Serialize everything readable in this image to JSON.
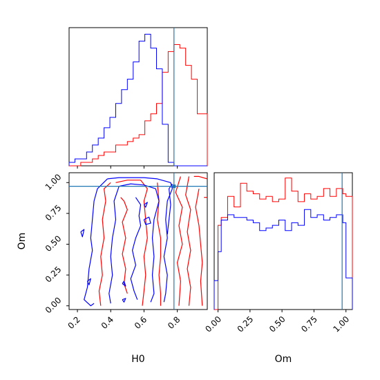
{
  "colors": {
    "series_a": "#ff0000",
    "series_b": "#0000ff",
    "truth": "#1f77b4"
  },
  "chart_data": [
    {
      "panel": "H0 marginal",
      "type": "histogram",
      "x_range": [
        0.15,
        0.98
      ],
      "bin_edges": [
        0.15,
        0.185,
        0.22,
        0.255,
        0.29,
        0.325,
        0.36,
        0.395,
        0.43,
        0.465,
        0.5,
        0.535,
        0.57,
        0.605,
        0.64,
        0.675,
        0.71,
        0.745,
        0.78,
        0.815,
        0.85,
        0.885,
        0.92,
        0.955,
        0.98
      ],
      "series": [
        {
          "color": "red",
          "counts": [
            0,
            0,
            1,
            1,
            2,
            3,
            4,
            4,
            6,
            6,
            7,
            8,
            9,
            13,
            15,
            18,
            27,
            33,
            35,
            34,
            29,
            25,
            15,
            15
          ]
        },
        {
          "color": "blue",
          "counts": [
            1,
            2,
            2,
            4,
            6,
            8,
            11,
            14,
            18,
            22,
            25,
            30,
            36,
            38,
            34,
            28,
            12,
            1,
            0,
            0,
            0,
            0,
            0,
            0
          ]
        }
      ],
      "truth_x": 0.78,
      "x_ticks": [
        "0.2",
        "0.4",
        "0.6",
        "0.8"
      ]
    },
    {
      "panel": "H0 vs Om joint",
      "type": "contour",
      "x_range": [
        0.15,
        0.98
      ],
      "y_range": [
        -0.03,
        1.08
      ],
      "xlabel": "H0",
      "ylabel": "Om",
      "x_ticks": [
        "0.2",
        "0.4",
        "0.6",
        "0.8"
      ],
      "y_ticks": [
        "0.00",
        "0.25",
        "0.50",
        "0.75",
        "1.00"
      ],
      "truth": {
        "x": 0.78,
        "y": 0.97
      },
      "series": [
        {
          "color": "red",
          "contours": [
            [
              [
                0.43,
                1.0
              ],
              [
                0.5,
                1.02
              ],
              [
                0.58,
                1.02
              ],
              [
                0.62,
                0.95
              ],
              [
                0.6,
                0.85
              ],
              [
                0.61,
                0.7
              ],
              [
                0.62,
                0.55
              ],
              [
                0.6,
                0.4
              ],
              [
                0.61,
                0.25
              ],
              [
                0.6,
                0.12
              ],
              [
                0.59,
                0.0
              ]
            ],
            [
              [
                0.34,
                0.0
              ],
              [
                0.33,
                0.12
              ],
              [
                0.35,
                0.25
              ],
              [
                0.34,
                0.4
              ],
              [
                0.36,
                0.55
              ],
              [
                0.35,
                0.7
              ],
              [
                0.37,
                0.85
              ],
              [
                0.36,
                0.95
              ],
              [
                0.4,
                1.0
              ]
            ],
            [
              [
                0.46,
                0.88
              ],
              [
                0.48,
                0.85
              ],
              [
                0.5,
                0.78
              ],
              [
                0.47,
                0.68
              ],
              [
                0.49,
                0.55
              ],
              [
                0.47,
                0.42
              ],
              [
                0.49,
                0.3
              ],
              [
                0.48,
                0.18
              ],
              [
                0.5,
                0.1
              ]
            ],
            [
              [
                0.68,
                1.0
              ],
              [
                0.69,
                0.85
              ],
              [
                0.68,
                0.7
              ],
              [
                0.7,
                0.55
              ],
              [
                0.7,
                0.4
              ],
              [
                0.69,
                0.25
              ],
              [
                0.7,
                0.1
              ],
              [
                0.7,
                0.0
              ]
            ],
            [
              [
                0.82,
                1.05
              ],
              [
                0.79,
                0.92
              ],
              [
                0.83,
                0.8
              ],
              [
                0.81,
                0.65
              ],
              [
                0.83,
                0.5
              ],
              [
                0.8,
                0.35
              ],
              [
                0.82,
                0.2
              ],
              [
                0.81,
                0.0
              ]
            ],
            [
              [
                0.87,
                1.05
              ],
              [
                0.85,
                0.9
              ],
              [
                0.88,
                0.78
              ],
              [
                0.86,
                0.6
              ],
              [
                0.88,
                0.45
              ],
              [
                0.86,
                0.3
              ],
              [
                0.88,
                0.15
              ],
              [
                0.87,
                0.0
              ]
            ],
            [
              [
                0.93,
                0.95
              ],
              [
                0.91,
                0.8
              ],
              [
                0.93,
                0.65
              ],
              [
                0.94,
                0.5
              ],
              [
                0.95,
                0.35
              ],
              [
                0.94,
                0.2
              ],
              [
                0.95,
                0.0
              ]
            ],
            [
              [
                0.96,
                0.88
              ],
              [
                0.98,
                0.88
              ]
            ],
            [
              [
                0.9,
                1.05
              ],
              [
                0.93,
                1.05
              ],
              [
                0.98,
                1.03
              ]
            ]
          ]
        },
        {
          "color": "blue",
          "contours": [
            [
              [
                0.38,
                1.03
              ],
              [
                0.45,
                1.04
              ],
              [
                0.52,
                1.04
              ],
              [
                0.6,
                1.04
              ],
              [
                0.68,
                1.03
              ],
              [
                0.76,
                1.0
              ],
              [
                0.77,
                0.95
              ],
              [
                0.74,
                0.85
              ],
              [
                0.73,
                0.7
              ],
              [
                0.74,
                0.55
              ],
              [
                0.72,
                0.4
              ],
              [
                0.74,
                0.25
              ],
              [
                0.73,
                0.1
              ],
              [
                0.72,
                0.03
              ]
            ],
            [
              [
                0.38,
                1.03
              ],
              [
                0.32,
                0.95
              ],
              [
                0.3,
                0.85
              ],
              [
                0.29,
                0.7
              ],
              [
                0.28,
                0.55
              ],
              [
                0.29,
                0.45
              ],
              [
                0.27,
                0.3
              ],
              [
                0.26,
                0.15
              ],
              [
                0.24,
                0.05
              ],
              [
                0.28,
                0.0
              ],
              [
                0.3,
                0.02
              ]
            ],
            [
              [
                0.45,
                0.97
              ],
              [
                0.52,
                0.99
              ],
              [
                0.6,
                0.98
              ],
              [
                0.67,
                0.95
              ],
              [
                0.69,
                0.85
              ],
              [
                0.66,
                0.7
              ],
              [
                0.65,
                0.55
              ],
              [
                0.66,
                0.4
              ],
              [
                0.65,
                0.25
              ],
              [
                0.66,
                0.1
              ],
              [
                0.64,
                0.03
              ]
            ],
            [
              [
                0.45,
                0.97
              ],
              [
                0.42,
                0.85
              ],
              [
                0.43,
                0.7
              ],
              [
                0.41,
                0.55
              ],
              [
                0.4,
                0.4
              ],
              [
                0.41,
                0.25
              ],
              [
                0.39,
                0.1
              ],
              [
                0.4,
                0.02
              ]
            ],
            [
              [
                0.55,
                0.88
              ],
              [
                0.58,
                0.82
              ],
              [
                0.57,
                0.73
              ],
              [
                0.58,
                0.65
              ],
              [
                0.55,
                0.55
              ],
              [
                0.53,
                0.45
              ],
              [
                0.55,
                0.33
              ],
              [
                0.52,
                0.22
              ],
              [
                0.54,
                0.12
              ],
              [
                0.56,
                0.05
              ]
            ],
            [
              [
                0.6,
                0.7
              ],
              [
                0.63,
                0.72
              ],
              [
                0.64,
                0.67
              ],
              [
                0.61,
                0.66
              ],
              [
                0.6,
                0.7
              ]
            ],
            [
              [
                0.6,
                0.82
              ],
              [
                0.62,
                0.84
              ],
              [
                0.61,
                0.8
              ],
              [
                0.6,
                0.82
              ]
            ],
            [
              [
                0.22,
                0.6
              ],
              [
                0.24,
                0.62
              ],
              [
                0.23,
                0.56
              ],
              [
                0.22,
                0.6
              ]
            ],
            [
              [
                0.26,
                0.2
              ],
              [
                0.28,
                0.22
              ],
              [
                0.27,
                0.17
              ],
              [
                0.26,
                0.2
              ]
            ],
            [
              [
                0.47,
                0.18
              ],
              [
                0.48,
                0.2
              ],
              [
                0.49,
                0.16
              ],
              [
                0.47,
                0.18
              ]
            ],
            [
              [
                0.47,
                0.05
              ],
              [
                0.49,
                0.06
              ],
              [
                0.48,
                0.03
              ],
              [
                0.47,
                0.05
              ]
            ],
            [
              [
                0.74,
                0.58
              ],
              [
                0.76,
                0.82
              ],
              [
                0.75,
                0.95
              ],
              [
                0.77,
                0.99
              ]
            ]
          ]
        }
      ]
    },
    {
      "panel": "Om marginal",
      "type": "histogram",
      "x_range": [
        -0.03,
        1.05
      ],
      "bin_edges": [
        -0.03,
        0.0,
        0.025,
        0.075,
        0.125,
        0.175,
        0.225,
        0.275,
        0.325,
        0.375,
        0.425,
        0.475,
        0.525,
        0.575,
        0.625,
        0.675,
        0.725,
        0.775,
        0.825,
        0.875,
        0.925,
        0.975,
        1.0,
        1.05
      ],
      "series": [
        {
          "color": "red",
          "counts": [
            0,
            32,
            35,
            43,
            39,
            48,
            45,
            44,
            42,
            43,
            41,
            42,
            50,
            45,
            41,
            44,
            42,
            43,
            46,
            43,
            46,
            44,
            43
          ]
        },
        {
          "color": "blue",
          "counts": [
            11,
            22,
            34,
            36,
            35,
            35,
            34,
            33,
            30,
            31,
            32,
            34,
            30,
            33,
            32,
            38,
            35,
            36,
            34,
            35,
            36,
            33,
            12
          ]
        }
      ],
      "truth_x": 0.97,
      "x_ticks": [
        "0.00",
        "0.25",
        "0.50",
        "0.75",
        "1.00"
      ],
      "xlabel": "Om"
    }
  ]
}
